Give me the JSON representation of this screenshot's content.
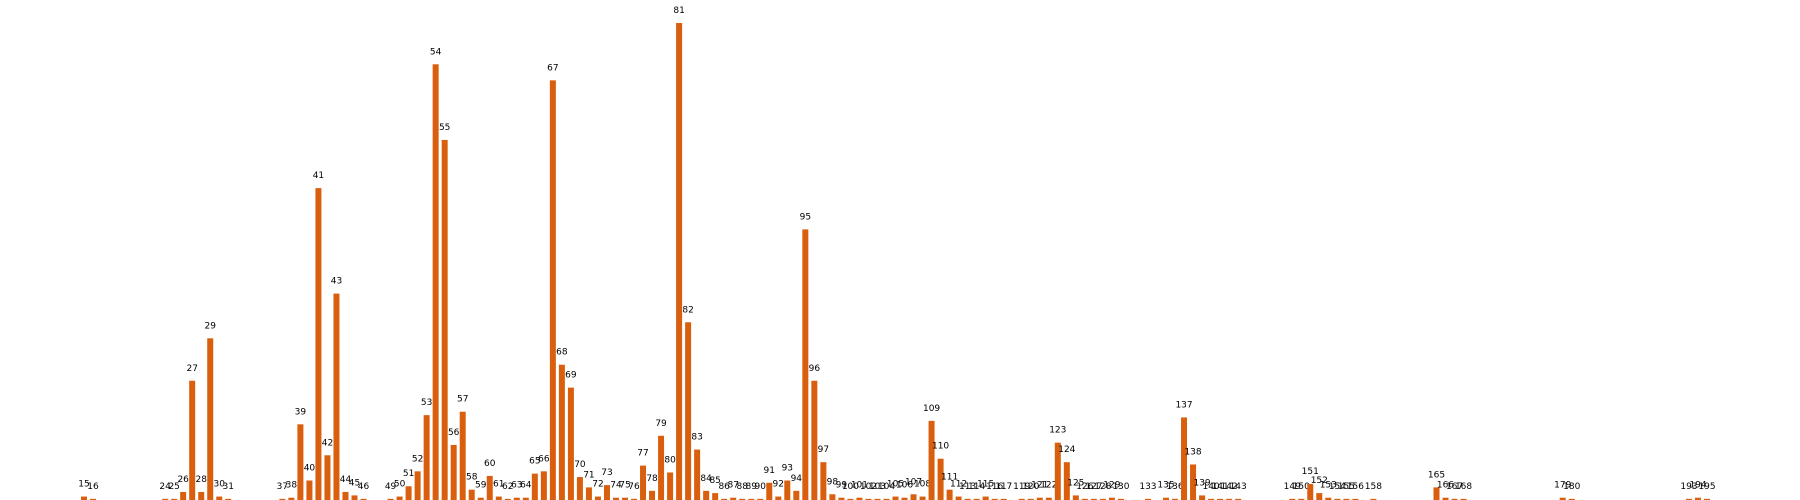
{
  "chart_data": {
    "type": "bar",
    "color": "#d95f0e",
    "x": [
      15,
      16,
      24,
      25,
      26,
      27,
      28,
      29,
      30,
      31,
      37,
      38,
      39,
      40,
      41,
      42,
      43,
      44,
      45,
      46,
      49,
      50,
      51,
      52,
      53,
      54,
      55,
      56,
      57,
      58,
      59,
      60,
      61,
      62,
      63,
      64,
      65,
      66,
      67,
      68,
      69,
      70,
      71,
      72,
      73,
      74,
      75,
      76,
      77,
      78,
      79,
      80,
      81,
      82,
      83,
      84,
      85,
      86,
      87,
      88,
      89,
      90,
      91,
      92,
      93,
      94,
      95,
      96,
      97,
      98,
      99,
      100,
      101,
      102,
      103,
      104,
      105,
      106,
      107,
      108,
      109,
      110,
      111,
      112,
      113,
      114,
      115,
      116,
      117,
      119,
      120,
      121,
      122,
      123,
      124,
      125,
      126,
      127,
      128,
      129,
      130,
      133,
      135,
      136,
      137,
      138,
      139,
      140,
      141,
      142,
      143,
      149,
      150,
      151,
      152,
      153,
      154,
      155,
      156,
      158,
      165,
      166,
      167,
      168,
      179,
      180,
      193,
      194,
      195
    ],
    "values": [
      3,
      1,
      1,
      1,
      7,
      104,
      7,
      141,
      3,
      1,
      1,
      2,
      66,
      17,
      272,
      39,
      180,
      7,
      4,
      1,
      1,
      3,
      12,
      25,
      74,
      380,
      314,
      48,
      77,
      9,
      2,
      21,
      3,
      1,
      2,
      2,
      23,
      25,
      366,
      118,
      98,
      20,
      11,
      3,
      13,
      2,
      2,
      1,
      30,
      8,
      56,
      24,
      416,
      155,
      44,
      8,
      6,
      1,
      2,
      1,
      1,
      1,
      15,
      3,
      17,
      8,
      236,
      104,
      33,
      5,
      2,
      1,
      2,
      1,
      1,
      1,
      3,
      2,
      5,
      3,
      69,
      36,
      9,
      3,
      1,
      1,
      3,
      1,
      1,
      1,
      1,
      2,
      2,
      50,
      33,
      4,
      1,
      1,
      1,
      2,
      1,
      1,
      2,
      1,
      72,
      31,
      4,
      1,
      1,
      1,
      1,
      1,
      1,
      14,
      6,
      2,
      1,
      1,
      1,
      1,
      11,
      2,
      1,
      1,
      2,
      1,
      1,
      2,
      1
    ]
  }
}
